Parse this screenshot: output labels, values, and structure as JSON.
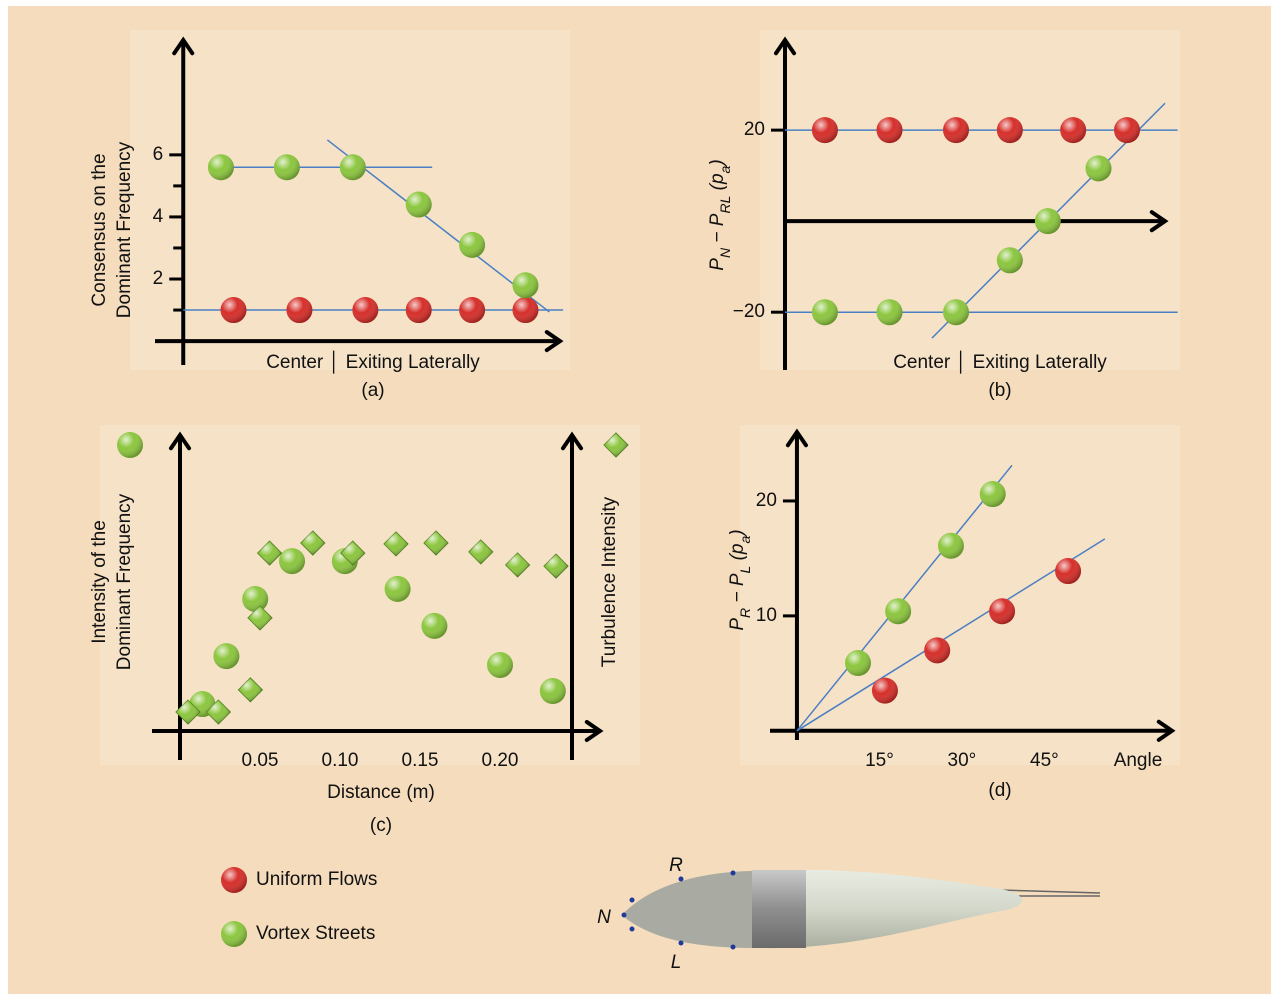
{
  "chart_data": [
    {
      "type": "scatter",
      "caption": "(a)",
      "ylabel": [
        "Consensus on the",
        "Dominant Frequency"
      ],
      "xlabel": "Center │ Exiting Laterally",
      "xlim": [
        -0.9,
        12
      ],
      "ylim": [
        -0.77,
        9.7
      ],
      "yticks": [
        2,
        4,
        6
      ],
      "minor_yticks": [
        1,
        3,
        5
      ],
      "series": [
        {
          "name": "Uniform Flows",
          "color": "#d62f2a",
          "marker": "circle",
          "x": [
            1.6,
            3.7,
            5.8,
            7.5,
            9.2,
            10.9
          ],
          "values": [
            1.0,
            1.0,
            1.0,
            1.0,
            1.0,
            1.0
          ]
        },
        {
          "name": "Vortex Streets",
          "color": "#8cc63f",
          "marker": "circle",
          "x": [
            1.2,
            3.3,
            5.4,
            7.5,
            9.2,
            10.9
          ],
          "values": [
            5.6,
            5.6,
            5.6,
            4.4,
            3.1,
            1.8
          ]
        }
      ],
      "fit_lines": [
        {
          "color": "#4a7fc4",
          "x": [
            0.86,
            7.93
          ],
          "y": [
            5.6,
            5.6
          ]
        },
        {
          "color": "#4a7fc4",
          "x": [
            4.59,
            11.66
          ],
          "y": [
            6.48,
            0.94
          ]
        },
        {
          "color": "#4a7fc4",
          "x": [
            0,
            12.1
          ],
          "y": [
            1.0,
            1.0
          ]
        }
      ]
    },
    {
      "type": "scatter",
      "caption": "(b)",
      "ylabel": [
        "P",
        "N",
        " − P",
        "RL",
        " (p",
        "a",
        ")"
      ],
      "ylabel_subscripts": true,
      "xlabel": "Center │ Exiting Laterally",
      "xlim": [
        0,
        12
      ],
      "ylim": [
        -32.7,
        39.8
      ],
      "yticks": [
        {
          "value": -20,
          "label": "−20"
        },
        20
      ],
      "series": [
        {
          "color": "#d62f2a",
          "marker": "circle",
          "x": [
            1.26,
            3.3,
            5.4,
            7.1,
            9.1,
            10.8
          ],
          "values": [
            20,
            20,
            20,
            20,
            20,
            20
          ]
        },
        {
          "color": "#8cc63f",
          "marker": "circle",
          "x": [
            1.26,
            3.3,
            5.4,
            7.1,
            8.3,
            9.9
          ],
          "values": [
            -20,
            -20,
            -20,
            -8.6,
            0,
            11.6
          ]
        }
      ],
      "fit_lines": [
        {
          "color": "#4a7fc4",
          "x": [
            0,
            12.4
          ],
          "y": [
            20,
            20
          ]
        },
        {
          "color": "#4a7fc4",
          "x": [
            0,
            12.4
          ],
          "y": [
            -20,
            -20
          ]
        },
        {
          "color": "#4a7fc4",
          "x": [
            4.64,
            12.0
          ],
          "y": [
            -25.7,
            25.9
          ]
        }
      ]
    },
    {
      "type": "scatter",
      "caption": "(c)",
      "ylabel": [
        "Intensity of the",
        "Dominant Frequency"
      ],
      "y2label": "Turbulence Intensity",
      "xlabel": "Distance (m)",
      "xlim": [
        -0.0175,
        0.2625
      ],
      "ylim": [
        -0.098,
        1
      ],
      "y2lim": [
        -0.098,
        1
      ],
      "xticks": [
        0.05,
        {
          "value": 0.1,
          "label": "0.10"
        },
        0.15,
        {
          "value": 0.2,
          "label": "0.20"
        }
      ],
      "series": [
        {
          "color": "#8cc63f",
          "marker": "circle",
          "x": [
            0.014,
            0.029,
            0.047,
            0.07,
            0.103,
            0.136,
            0.159,
            0.2,
            0.233
          ],
          "values": [
            0.091,
            0.253,
            0.446,
            0.574,
            0.574,
            0.48,
            0.355,
            0.223,
            0.135
          ]
        },
        {
          "color": "#8cc63f",
          "marker": "diamond",
          "axis": "y2",
          "x": [
            0.005,
            0.024,
            0.044,
            0.05,
            0.056,
            0.083,
            0.108,
            0.135,
            0.16,
            0.188,
            0.211,
            0.235
          ],
          "values": [
            0.064,
            0.064,
            0.139,
            0.382,
            0.601,
            0.635,
            0.601,
            0.632,
            0.635,
            0.605,
            0.561,
            0.557
          ]
        }
      ]
    },
    {
      "type": "scatter",
      "caption": "(d)",
      "ylabel": [
        "P",
        "R",
        " − P",
        "L",
        " (p",
        "a",
        ")"
      ],
      "ylabel_subscripts": true,
      "xlabel": "Angle",
      "xlim": [
        -4.9,
        68.2
      ],
      "ylim": [
        -0.8,
        26
      ],
      "yticks": [
        10,
        20
      ],
      "xticks": [
        {
          "value": 15,
          "label": "15°"
        },
        {
          "value": 30,
          "label": "30°"
        },
        {
          "value": 45,
          "label": "45°"
        }
      ],
      "series": [
        {
          "color": "#d62f2a",
          "marker": "circle",
          "x": [
            16,
            25.5,
            37.3,
            49.3
          ],
          "values": [
            3.5,
            7,
            10.4,
            13.9
          ]
        },
        {
          "color": "#8cc63f",
          "marker": "circle",
          "x": [
            11.1,
            18.4,
            28,
            35.6
          ],
          "values": [
            5.9,
            10.4,
            16.1,
            20.6
          ]
        }
      ],
      "fit_lines": [
        {
          "color": "#4a7fc4",
          "x": [
            0,
            39.1
          ],
          "y": [
            0,
            23.1
          ]
        },
        {
          "color": "#4a7fc4",
          "x": [
            0,
            56
          ],
          "y": [
            0,
            16.7
          ]
        }
      ]
    }
  ],
  "sensor_labels": [
    "R",
    "N",
    "L"
  ]
}
